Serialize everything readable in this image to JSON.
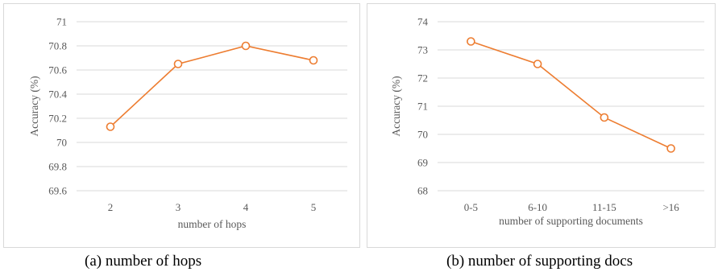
{
  "chart_data": [
    {
      "type": "line",
      "caption": "(a)  number of hops",
      "xlabel": "number of hops",
      "ylabel": "Accuracy (%)",
      "categories": [
        "2",
        "3",
        "4",
        "5"
      ],
      "yticks": [
        "69.6",
        "69.8",
        "70",
        "70.2",
        "70.4",
        "70.6",
        "70.8",
        "71"
      ],
      "ylim": [
        69.6,
        71
      ],
      "grid": true,
      "series": [
        {
          "values": [
            70.13,
            70.65,
            70.8,
            70.68
          ],
          "color": "#ed7d31",
          "marker": "open-circle"
        }
      ]
    },
    {
      "type": "line",
      "caption": "(b)  number of supporting docs",
      "xlabel": "number of supporting documents",
      "ylabel": "Accuracy (%)",
      "categories": [
        "0-5",
        "6-10",
        "11-15",
        ">16"
      ],
      "yticks": [
        "68",
        "69",
        "70",
        "71",
        "72",
        "73",
        "74"
      ],
      "ylim": [
        68,
        74
      ],
      "grid": true,
      "series": [
        {
          "values": [
            73.3,
            72.5,
            70.6,
            69.5
          ],
          "color": "#ed7d31",
          "marker": "open-circle"
        }
      ]
    }
  ]
}
